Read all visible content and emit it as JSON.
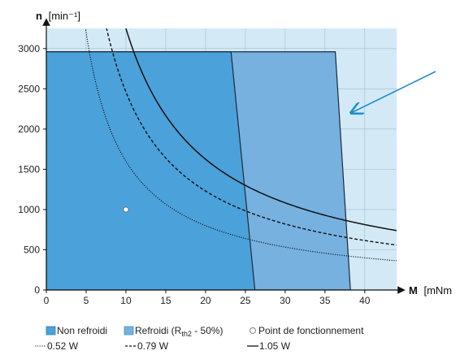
{
  "chart_data": {
    "type": "area",
    "xlabel": {
      "symbol": "M",
      "unit": "[mNm"
    },
    "ylabel": {
      "symbol": "n",
      "unit": "[min⁻¹]"
    },
    "xlim": [
      0,
      44
    ],
    "ylim": [
      0,
      3250
    ],
    "x_ticks": [
      "0",
      "5",
      "10",
      "15",
      "20",
      "25",
      "30",
      "35",
      "40"
    ],
    "y_ticks": [
      "0",
      "500",
      "1000",
      "1500",
      "2000",
      "2500",
      "3000"
    ],
    "background_color": "#d3e9f6",
    "grid": true,
    "regions": [
      {
        "name": "Refroidi (Rth2 - 50%)",
        "color": "#76b1e0",
        "points": [
          [
            0,
            0
          ],
          [
            0,
            2960
          ],
          [
            36.3,
            2960
          ],
          [
            38.2,
            0
          ]
        ]
      },
      {
        "name": "Non refroidi",
        "color": "#4ba1d9",
        "points": [
          [
            0,
            0
          ],
          [
            0,
            2960
          ],
          [
            23.2,
            2960
          ],
          [
            26.2,
            0
          ]
        ]
      }
    ],
    "series": [
      {
        "name": "0.52 W",
        "style": "dotted",
        "power_k": 16.0,
        "x_range": [
          1.9,
          44
        ]
      },
      {
        "name": "0.79 W",
        "style": "dashed",
        "power_k": 24.6,
        "x_range": [
          2.4,
          44
        ]
      },
      {
        "name": "1.05 W",
        "style": "solid",
        "power_k": 32.5,
        "x_range": [
          3.0,
          44
        ]
      }
    ],
    "curve_equation": "n = power_k * 1000 / M",
    "operating_point": {
      "label": "Point de fonctionnement",
      "x": 10,
      "y": 1000
    },
    "annotation_arrow": {
      "from": [
        536,
        88
      ],
      "to": [
        432,
        139
      ],
      "color": "#1e8ec8"
    },
    "legend": {
      "placement": "bottom",
      "row1": [
        {
          "kind": "swatch",
          "color": "#4ba1d9",
          "text": "Non refroidi"
        },
        {
          "kind": "swatch",
          "color": "#76b1e0",
          "text": "Refroidi (R",
          "sub": "th2",
          "after": " - 50%)"
        },
        {
          "kind": "circle",
          "text": "Point de fonctionnement"
        }
      ],
      "row2": [
        {
          "kind": "dotted",
          "text": "0.52 W"
        },
        {
          "kind": "dashed",
          "text": "0.79 W"
        },
        {
          "kind": "solid",
          "text": "1.05 W"
        }
      ]
    }
  }
}
